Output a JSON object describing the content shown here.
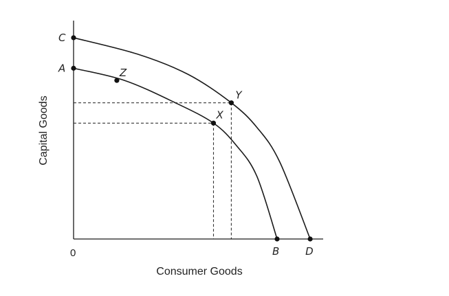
{
  "chart_data": {
    "type": "line",
    "title": "",
    "xlabel": "Consumer Goods",
    "ylabel": "Capital Goods",
    "origin_label": "0",
    "xlim": [
      0,
      100
    ],
    "ylim": [
      0,
      100
    ],
    "grid": false,
    "series": [
      {
        "x": [
          0,
          20,
          40,
          55,
          64,
          72,
          80
        ],
        "y": [
          84,
          78,
          67,
          57,
          46,
          31,
          0
        ]
      },
      {
        "x": [
          0,
          25,
          45,
          62,
          72,
          81,
          93
        ],
        "y": [
          99,
          91,
          81,
          67,
          55,
          38,
          0
        ]
      }
    ],
    "points": [
      {
        "label": "C",
        "x": 0,
        "y": 99
      },
      {
        "label": "A",
        "x": 0,
        "y": 84
      },
      {
        "label": "Z",
        "x": 17,
        "y": 78
      },
      {
        "label": "Y",
        "x": 62,
        "y": 67
      },
      {
        "label": "X",
        "x": 55,
        "y": 57
      },
      {
        "label": "B",
        "x": 80,
        "y": 0
      },
      {
        "label": "D",
        "x": 93,
        "y": 0
      }
    ],
    "reference_lines": [
      {
        "from_point": "Y"
      },
      {
        "from_point": "X"
      }
    ]
  }
}
